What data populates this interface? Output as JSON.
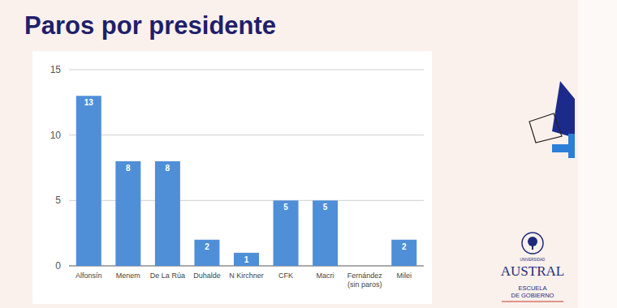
{
  "chart_data": {
    "type": "bar",
    "title": "Paros por presidente",
    "categories": [
      "Alfonsín",
      "Menem",
      "De La Rúa",
      "Duhalde",
      "N Kirchner",
      "CFK",
      "Macri",
      "Fernández (sin paros)",
      "Milei"
    ],
    "values": [
      13,
      8,
      8,
      2,
      1,
      5,
      5,
      0,
      2
    ],
    "color": "#4f8fd8",
    "ylim": [
      0,
      15
    ],
    "yticks": [
      0,
      5,
      10,
      15
    ],
    "grid": true,
    "data_labels": true
  },
  "slide": {
    "logo": {
      "university": "UNIVERSIDAD",
      "name": "AUSTRAL",
      "school": [
        "ESCUELA",
        "DE GOBIERNO"
      ]
    }
  }
}
